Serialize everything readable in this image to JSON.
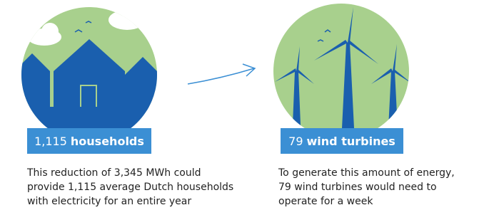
{
  "left": {
    "number": "1,115",
    "label": "households",
    "description": [
      "This reduction of 3,345 MWh could",
      "provide 1,115 average Dutch households",
      "with electricity for an entire year"
    ]
  },
  "right": {
    "number": "79",
    "label": "wind turbines",
    "description": [
      "To generate this amount of energy,",
      "79 wind turbines would need to",
      "operate for a week"
    ]
  }
}
